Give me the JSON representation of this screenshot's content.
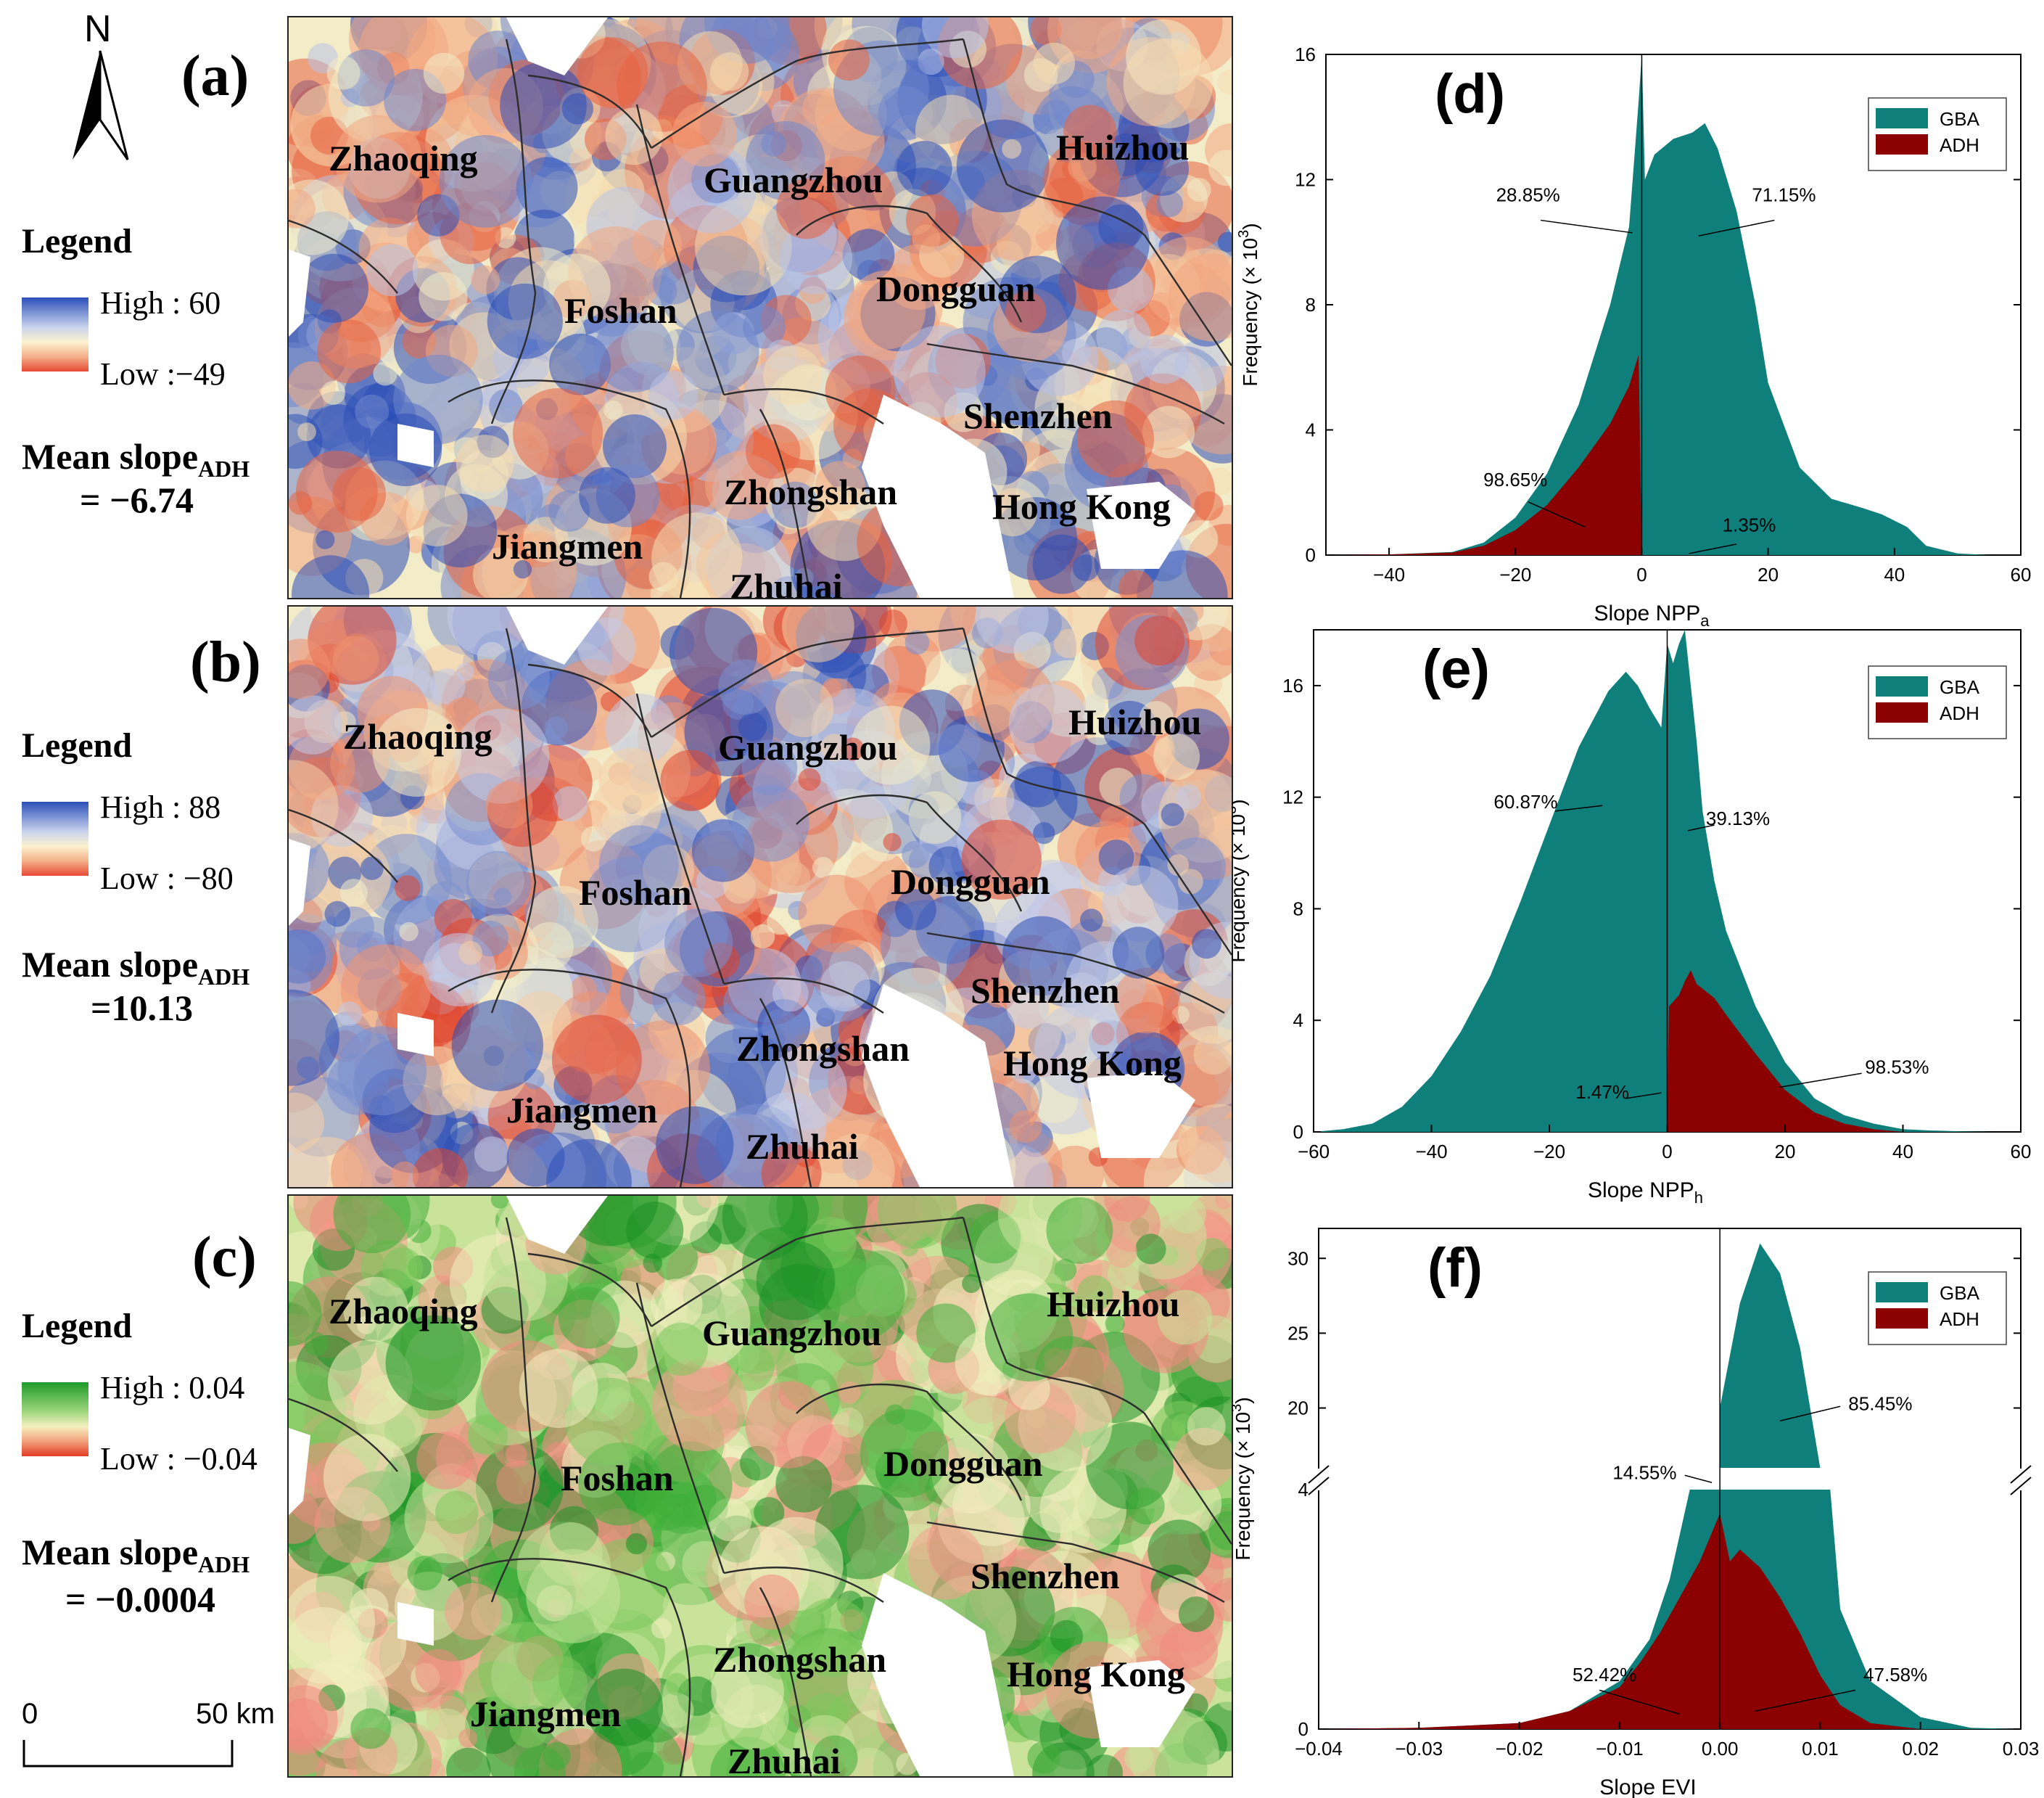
{
  "north_arrow": {
    "label": "N"
  },
  "scale_bar": {
    "start": "0",
    "end": "50 km"
  },
  "colors": {
    "blue": "#3a57b8",
    "cream": "#f5efc8",
    "red": "#e8533e",
    "green": "#23a02f",
    "pink": "#f08a80",
    "teal": "#0e7f7a",
    "darkred": "#8b0000"
  },
  "maps": [
    {
      "panel": "(a)",
      "legend_title": "Legend",
      "high": "High : 60",
      "low": "Low :−49",
      "mean_label": "Mean slope",
      "mean_sub": "ADH",
      "mean_value": "= −6.74",
      "palette": "bluered",
      "cities": [
        "Zhaoqing",
        "Guangzhou",
        "Huizhou",
        "Foshan",
        "Dongguan",
        "Shenzhen",
        "Zhongshan",
        "Hong Kong",
        "Jiangmen",
        "Zhuhai"
      ]
    },
    {
      "panel": "(b)",
      "legend_title": "Legend",
      "high": "High : 88",
      "low": "Low : −80",
      "mean_label": "Mean slope",
      "mean_sub": "ADH",
      "mean_value": "=10.13",
      "palette": "redblue",
      "cities": [
        "Zhaoqing",
        "Guangzhou",
        "Huizhou",
        "Foshan",
        "Dongguan",
        "Shenzhen",
        "Zhongshan",
        "Hong Kong",
        "Jiangmen",
        "Zhuhai"
      ]
    },
    {
      "panel": "(c)",
      "legend_title": "Legend",
      "high": "High : 0.04",
      "low": "Low : −0.04",
      "mean_label": "Mean slope",
      "mean_sub": "ADH",
      "mean_value": "= −0.0004",
      "palette": "greenred",
      "cities": [
        "Zhaoqing",
        "Guangzhou",
        "Huizhou",
        "Foshan",
        "Dongguan",
        "Shenzhen",
        "Zhongshan",
        "Hong Kong",
        "Jiangmen",
        "Zhuhai"
      ]
    }
  ],
  "chart_data": [
    {
      "panel": "(d)",
      "type": "area",
      "xlabel": "Slope NPP",
      "xlabel_sub": "a",
      "ylabel": "Frequency (× 10",
      "ylabel_sup": "3",
      "xlim": [
        -50,
        60
      ],
      "ylim": [
        0,
        16
      ],
      "xticks": [
        -40,
        -20,
        0,
        20,
        40,
        60
      ],
      "yticks": [
        0,
        4,
        8,
        12,
        16
      ],
      "legend": [
        "GBA",
        "ADH"
      ],
      "series": [
        {
          "name": "GBA",
          "x": [
            -50,
            -40,
            -30,
            -25,
            -20,
            -15,
            -10,
            -5,
            -2,
            -0.5,
            0,
            0.5,
            2,
            5,
            8,
            10,
            12,
            15,
            18,
            20,
            25,
            30,
            35,
            38,
            42,
            45,
            50,
            55,
            60
          ],
          "y": [
            0,
            0.02,
            0.1,
            0.4,
            1.2,
            2.6,
            4.8,
            8.0,
            10.5,
            14.5,
            16.0,
            12.0,
            12.8,
            13.3,
            13.5,
            13.8,
            13.0,
            11.0,
            8.0,
            5.5,
            2.8,
            1.8,
            1.5,
            1.3,
            0.9,
            0.3,
            0.05,
            0,
            0
          ]
        },
        {
          "name": "ADH",
          "x": [
            -50,
            -40,
            -30,
            -25,
            -20,
            -15,
            -10,
            -5,
            -2,
            -0.5,
            0
          ],
          "y": [
            0,
            0.02,
            0.08,
            0.3,
            0.8,
            1.6,
            2.8,
            4.2,
            5.4,
            6.4,
            0
          ]
        }
      ],
      "annotations": [
        "28.85%",
        "71.15%",
        "98.65%",
        "1.35%"
      ]
    },
    {
      "panel": "(e)",
      "type": "area",
      "xlabel": "Slope NPP",
      "xlabel_sub": "h",
      "ylabel": "Frequency (× 10",
      "ylabel_sup": "3",
      "xlim": [
        -60,
        60
      ],
      "ylim": [
        0,
        18
      ],
      "xticks": [
        -60,
        -40,
        -20,
        0,
        20,
        40,
        60
      ],
      "yticks": [
        0,
        4,
        8,
        12,
        16
      ],
      "legend": [
        "GBA",
        "ADH"
      ],
      "series": [
        {
          "name": "GBA",
          "x": [
            -60,
            -55,
            -50,
            -45,
            -40,
            -35,
            -30,
            -25,
            -20,
            -15,
            -10,
            -7,
            -5,
            -3,
            -1,
            0,
            1,
            2,
            3,
            4,
            5,
            6,
            8,
            10,
            15,
            20,
            25,
            30,
            35,
            40,
            45,
            50,
            55,
            60
          ],
          "y": [
            0,
            0.1,
            0.3,
            0.9,
            2.0,
            3.6,
            5.6,
            8.2,
            11.0,
            13.8,
            15.8,
            16.5,
            16.0,
            15.2,
            14.5,
            17.5,
            16.8,
            17.5,
            18.0,
            16.0,
            14.0,
            11.5,
            9.0,
            7.2,
            4.5,
            2.5,
            1.2,
            0.6,
            0.3,
            0.1,
            0.05,
            0.02,
            0,
            0
          ]
        },
        {
          "name": "ADH",
          "x": [
            0,
            0.3,
            2,
            3,
            4,
            5,
            8,
            10,
            15,
            20,
            25,
            30,
            35,
            40
          ],
          "y": [
            0,
            4.5,
            4.9,
            5.4,
            5.8,
            5.3,
            4.8,
            4.2,
            2.8,
            1.5,
            0.7,
            0.3,
            0.1,
            0
          ]
        }
      ],
      "annotations": [
        "60.87%",
        "39.13%",
        "1.47%",
        "98.53%"
      ]
    },
    {
      "panel": "(f)",
      "type": "area",
      "xlabel": "Slope EVI",
      "ylabel": "Frequency (× 10",
      "ylabel_sup": "3",
      "xlim": [
        -0.04,
        0.03
      ],
      "lower_ylim": [
        0,
        4
      ],
      "upper_ylim": [
        16,
        32
      ],
      "xticks": [
        -0.04,
        -0.03,
        -0.02,
        -0.01,
        0.0,
        0.01,
        0.02,
        0.03
      ],
      "xtick_labels": [
        "−0.04",
        "−0.03",
        "−0.02",
        "−0.01",
        "0.00",
        "0.01",
        "0.02",
        "0.03"
      ],
      "yticks_lower": [
        0,
        4
      ],
      "yticks_upper": [
        20,
        25,
        30
      ],
      "legend": [
        "GBA",
        "ADH"
      ],
      "series": [
        {
          "name": "GBA",
          "x": [
            -0.04,
            -0.03,
            -0.02,
            -0.015,
            -0.01,
            -0.007,
            -0.005,
            -0.003,
            -0.001,
            0.0,
            0.002,
            0.004,
            0.006,
            0.008,
            0.01,
            0.011,
            0.012,
            0.015,
            0.02,
            0.025,
            0.03
          ],
          "y": [
            0,
            0.02,
            0.1,
            0.3,
            0.8,
            1.5,
            2.5,
            4.5,
            12.0,
            20.0,
            27.0,
            31.0,
            29.0,
            24.0,
            16.0,
            6.0,
            2.0,
            0.8,
            0.2,
            0.02,
            0
          ]
        },
        {
          "name": "ADH",
          "x": [
            -0.04,
            -0.03,
            -0.02,
            -0.015,
            -0.01,
            -0.008,
            -0.006,
            -0.004,
            -0.002,
            -0.001,
            0.0,
            0.001,
            0.002,
            0.004,
            0.006,
            0.008,
            0.01,
            0.012,
            0.015,
            0.02
          ],
          "y": [
            0,
            0.02,
            0.1,
            0.3,
            0.7,
            1.1,
            1.6,
            2.2,
            2.8,
            3.2,
            3.6,
            2.8,
            3.0,
            2.7,
            2.2,
            1.6,
            0.9,
            0.4,
            0.1,
            0
          ]
        }
      ],
      "annotations": [
        "85.45%",
        "14.55%",
        "52.42%",
        "47.58%"
      ]
    }
  ]
}
